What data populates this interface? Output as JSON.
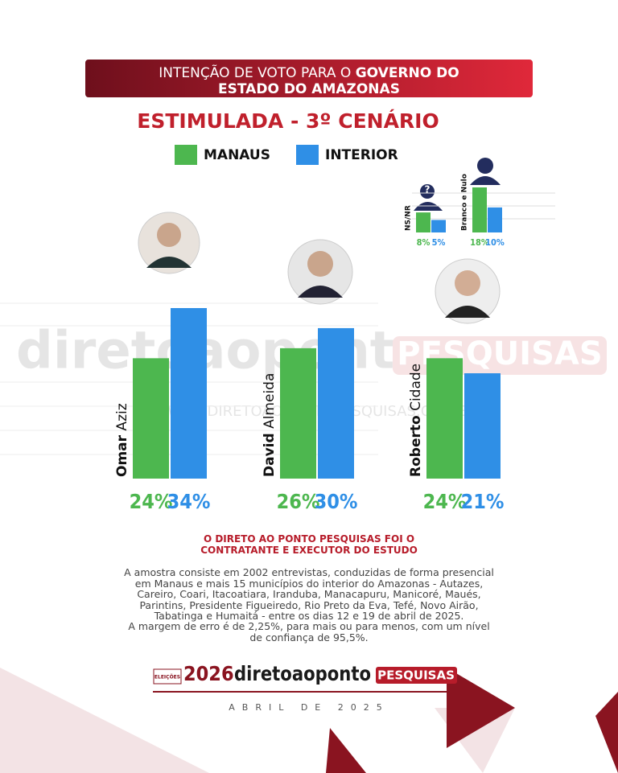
{
  "header": {
    "title_regular": "INTENÇÃO DE VOTO PARA O",
    "title_bold_1": "GOVERNO DO",
    "title_bold_2": "ESTADO DO AMAZONAS",
    "subtitle": "ESTIMULADA - 3º CENÁRIO"
  },
  "chart_data": [
    {
      "type": "bar",
      "categories": [
        "Omar Aziz",
        "David Almeida",
        "Roberto Cidade"
      ],
      "series": [
        {
          "name": "MANAUS",
          "color": "#4db74f",
          "values": [
            24,
            26,
            24
          ],
          "value_labels": [
            "24%",
            "26%",
            "24%"
          ]
        },
        {
          "name": "INTERIOR",
          "color": "#2f8fe6",
          "values": [
            34,
            30,
            21
          ],
          "value_labels": [
            "34%",
            "30%",
            "21%"
          ]
        }
      ]
    },
    {
      "type": "bar",
      "categories": [
        "NS/NR",
        "Branco e Nulo"
      ],
      "series": [
        {
          "name": "MANAUS",
          "color": "#4db74f",
          "values": [
            8,
            18
          ],
          "value_labels": [
            "8%",
            "18%"
          ]
        },
        {
          "name": "INTERIOR",
          "color": "#2f8fe6",
          "values": [
            5,
            10
          ],
          "value_labels": [
            "5%",
            "10%"
          ]
        }
      ]
    }
  ],
  "watermark": {
    "brand": "diretoaoponto",
    "tag": "PESQUISAS",
    "url": "WWW.DIRETOAOPONTOPESQUISAS.COM.BR"
  },
  "note": {
    "title_1": "O DIRETO AO PONTO PESQUISAS FOI O",
    "title_2": "CONTRATANTE E EXECUTOR DO ESTUDO",
    "body_1": "A amostra consiste em 2002 entrevistas, conduzidas de forma presencial em Manaus e mais 15 municípios do interior do Amazonas - Autazes, Careiro, Coari, Itacoatiara, Iranduba, Manacapuru, Manicoré, Maués, Parintins, Presidente Figueiredo, Rio Preto da Eva, Tefé, Novo Airão, Tabatinga e Humaitá - entre os dias 12 e 19 de abril de 2025.",
    "body_2": "A margem de erro é de 2,25%, para mais ou para menos, com um nível de confiança de 95,5%."
  },
  "footer": {
    "badge": "ELEIÇÕES",
    "year": "2026",
    "brand": "diretoaoponto",
    "tag": "PESQUISAS",
    "date": "ABRIL DE 2025"
  }
}
